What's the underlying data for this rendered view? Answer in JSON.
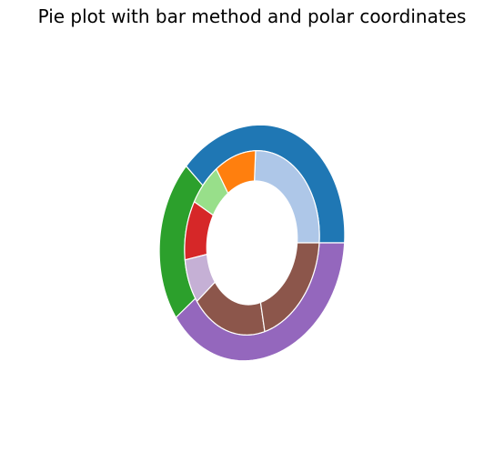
{
  "chart_data": {
    "type": "pie",
    "title": "Pie plot with bar method and polar coordinates",
    "outer_ring": {
      "values": [
        60,
        32,
        62
      ],
      "colors": [
        "#1f77b4",
        "#2ca02c",
        "#9467bd"
      ]
    },
    "inner_ring": {
      "values": [
        42,
        18,
        14,
        18,
        13,
        31,
        38
      ],
      "colors": [
        "#aec7e8",
        "#ff7f0e",
        "#98df8a",
        "#d62728",
        "#c5b0d5",
        "#8c564b",
        "#8c564b"
      ]
    },
    "wedge_edge_color": "#ffffff",
    "axis_visible": false
  }
}
